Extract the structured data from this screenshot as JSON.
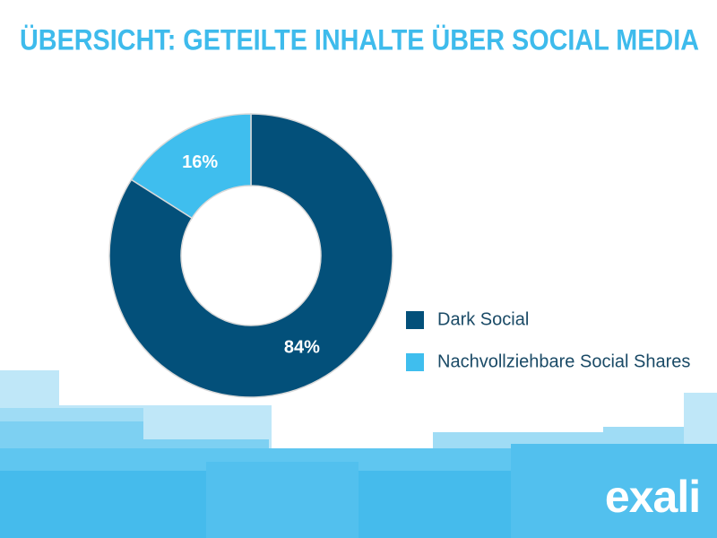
{
  "chart_data": {
    "type": "pie",
    "title": "ÜBERSICHT: GETEILTE INHALTE ÜBER SOCIAL MEDIA",
    "categories": [
      "Dark Social",
      "Nachvollziehbare Social Shares"
    ],
    "values": [
      84,
      16
    ],
    "value_labels": [
      "84%",
      "16%"
    ],
    "colors": [
      "#03507a",
      "#3fbeee"
    ],
    "legend": "right"
  },
  "logo": "exali"
}
